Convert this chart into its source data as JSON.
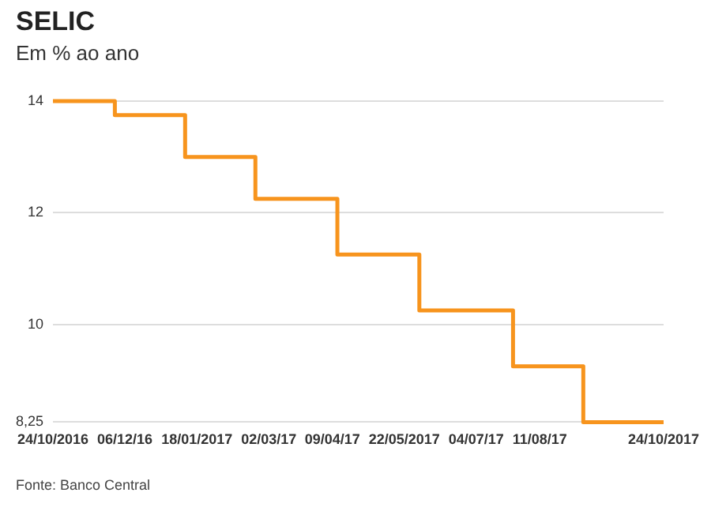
{
  "chart_data": {
    "type": "step",
    "title": "SELIC",
    "subtitle": "Em % ao ano",
    "annotations": [
      "Fonte: Banco Central"
    ],
    "x": [
      "2016-10-24",
      "2016-11-30",
      "2017-01-11",
      "2017-02-22",
      "2017-04-12",
      "2017-05-31",
      "2017-07-26",
      "2017-09-06",
      "2017-10-24"
    ],
    "series": [
      {
        "color": "#f7941d",
        "values": [
          14,
          13.75,
          13,
          12.25,
          11.25,
          10.25,
          9.25,
          8.25,
          8.25
        ]
      }
    ],
    "xlim": [
      "2016-10-24",
      "2017-10-24"
    ],
    "xticks": [
      {
        "value": "2016-10-24",
        "label": "24/10/2016"
      },
      {
        "value": "2016-12-06",
        "label": "06/12/16"
      },
      {
        "value": "2017-01-18",
        "label": "18/01/2017"
      },
      {
        "value": "2017-03-02",
        "label": "02/03/17"
      },
      {
        "value": "2017-04-09",
        "label": "09/04/17"
      },
      {
        "value": "2017-05-22",
        "label": "22/05/2017"
      },
      {
        "value": "2017-07-04",
        "label": "04/07/17"
      },
      {
        "value": "2017-08-11",
        "label": "11/08/17"
      },
      {
        "value": "2017-10-24",
        "label": "24/10/2017"
      }
    ],
    "ylim": [
      8.25,
      14
    ],
    "yticks": [
      {
        "value": 8.25,
        "label": "8,25"
      },
      10,
      12,
      14
    ],
    "grid": "y",
    "legend": false,
    "marker": "none",
    "line_style": "solid"
  }
}
